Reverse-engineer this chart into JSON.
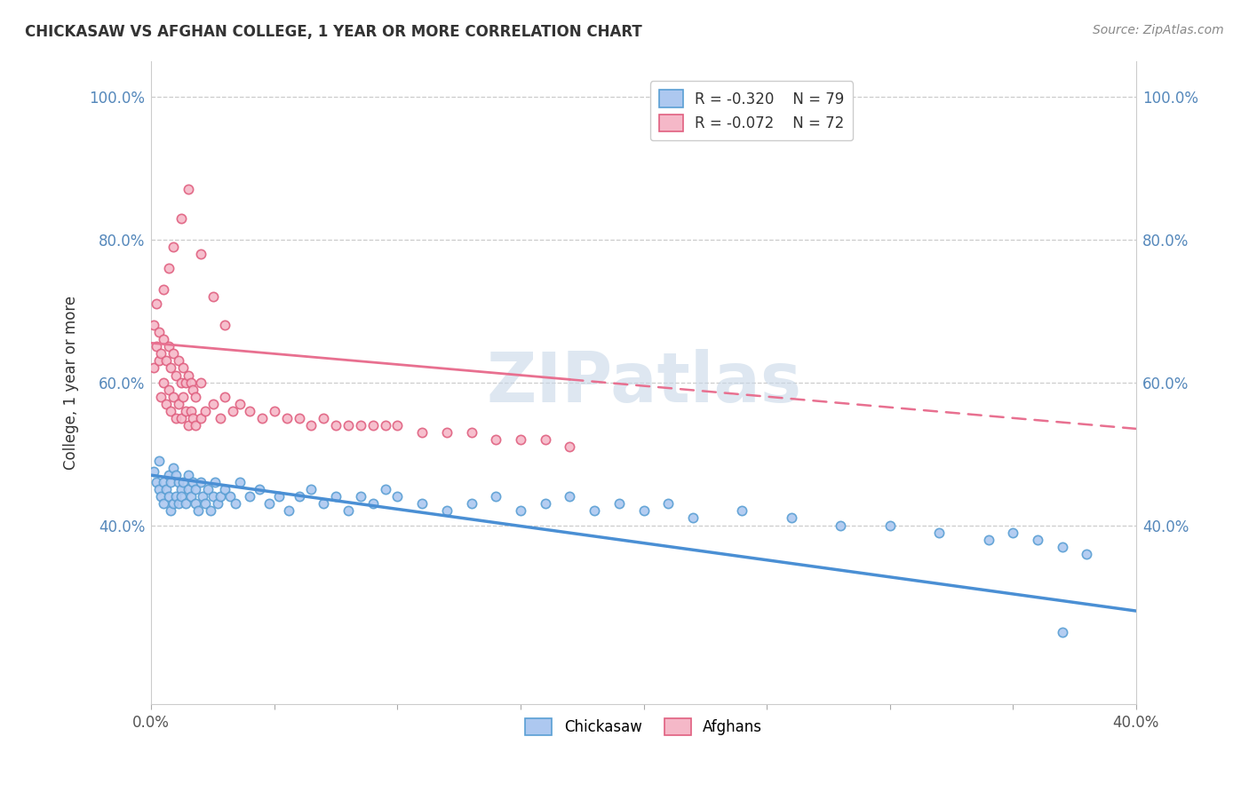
{
  "title": "CHICKASAW VS AFGHAN COLLEGE, 1 YEAR OR MORE CORRELATION CHART",
  "source": "Source: ZipAtlas.com",
  "ylabel": "College, 1 year or more",
  "xlim": [
    0.0,
    0.4
  ],
  "ylim": [
    0.15,
    1.05
  ],
  "yticks": [
    0.4,
    0.6,
    0.8,
    1.0
  ],
  "ytick_labels": [
    "40.0%",
    "60.0%",
    "80.0%",
    "100.0%"
  ],
  "xtick_vals": [
    0.0,
    0.05,
    0.1,
    0.15,
    0.2,
    0.25,
    0.3,
    0.35,
    0.4
  ],
  "xtick_labels": [
    "0.0%",
    "",
    "",
    "",
    "",
    "",
    "",
    "",
    "40.0%"
  ],
  "legend_R_chickasaw": "-0.320",
  "legend_N_chickasaw": "79",
  "legend_R_afghan": "-0.072",
  "legend_N_afghan": "72",
  "chickasaw_fill": "#adc8f0",
  "chickasaw_edge": "#5a9fd4",
  "afghan_fill": "#f5b8c8",
  "afghan_edge": "#e06080",
  "trendline_blue": "#4a8fd4",
  "trendline_pink": "#e87090",
  "watermark": "ZIPatlas",
  "chickasaw_x": [
    0.001,
    0.002,
    0.003,
    0.003,
    0.004,
    0.005,
    0.005,
    0.006,
    0.007,
    0.007,
    0.008,
    0.008,
    0.009,
    0.009,
    0.01,
    0.01,
    0.011,
    0.011,
    0.012,
    0.012,
    0.013,
    0.014,
    0.015,
    0.015,
    0.016,
    0.017,
    0.018,
    0.018,
    0.019,
    0.02,
    0.021,
    0.022,
    0.023,
    0.024,
    0.025,
    0.026,
    0.027,
    0.028,
    0.03,
    0.032,
    0.034,
    0.036,
    0.04,
    0.044,
    0.048,
    0.052,
    0.056,
    0.06,
    0.065,
    0.07,
    0.075,
    0.08,
    0.085,
    0.09,
    0.095,
    0.1,
    0.11,
    0.12,
    0.13,
    0.14,
    0.15,
    0.16,
    0.17,
    0.18,
    0.19,
    0.2,
    0.21,
    0.22,
    0.24,
    0.26,
    0.28,
    0.3,
    0.32,
    0.34,
    0.35,
    0.36,
    0.37,
    0.38,
    0.37
  ],
  "chickasaw_y": [
    0.475,
    0.46,
    0.45,
    0.49,
    0.44,
    0.46,
    0.43,
    0.45,
    0.44,
    0.47,
    0.42,
    0.46,
    0.43,
    0.48,
    0.44,
    0.47,
    0.43,
    0.46,
    0.45,
    0.44,
    0.46,
    0.43,
    0.45,
    0.47,
    0.44,
    0.46,
    0.43,
    0.45,
    0.42,
    0.46,
    0.44,
    0.43,
    0.45,
    0.42,
    0.44,
    0.46,
    0.43,
    0.44,
    0.45,
    0.44,
    0.43,
    0.46,
    0.44,
    0.45,
    0.43,
    0.44,
    0.42,
    0.44,
    0.45,
    0.43,
    0.44,
    0.42,
    0.44,
    0.43,
    0.45,
    0.44,
    0.43,
    0.42,
    0.43,
    0.44,
    0.42,
    0.43,
    0.44,
    0.42,
    0.43,
    0.42,
    0.43,
    0.41,
    0.42,
    0.41,
    0.4,
    0.4,
    0.39,
    0.38,
    0.39,
    0.38,
    0.37,
    0.36,
    0.25
  ],
  "afghan_x": [
    0.001,
    0.001,
    0.002,
    0.002,
    0.003,
    0.003,
    0.004,
    0.004,
    0.005,
    0.005,
    0.006,
    0.006,
    0.007,
    0.007,
    0.008,
    0.008,
    0.009,
    0.009,
    0.01,
    0.01,
    0.011,
    0.011,
    0.012,
    0.012,
    0.013,
    0.013,
    0.014,
    0.014,
    0.015,
    0.015,
    0.016,
    0.016,
    0.017,
    0.017,
    0.018,
    0.018,
    0.02,
    0.02,
    0.022,
    0.025,
    0.028,
    0.03,
    0.033,
    0.036,
    0.04,
    0.045,
    0.05,
    0.055,
    0.06,
    0.065,
    0.07,
    0.075,
    0.08,
    0.085,
    0.09,
    0.095,
    0.1,
    0.11,
    0.12,
    0.13,
    0.14,
    0.15,
    0.16,
    0.17,
    0.005,
    0.007,
    0.009,
    0.012,
    0.015,
    0.02,
    0.025,
    0.03
  ],
  "afghan_y": [
    0.62,
    0.68,
    0.65,
    0.71,
    0.63,
    0.67,
    0.58,
    0.64,
    0.6,
    0.66,
    0.57,
    0.63,
    0.59,
    0.65,
    0.56,
    0.62,
    0.58,
    0.64,
    0.55,
    0.61,
    0.57,
    0.63,
    0.55,
    0.6,
    0.58,
    0.62,
    0.56,
    0.6,
    0.54,
    0.61,
    0.56,
    0.6,
    0.55,
    0.59,
    0.54,
    0.58,
    0.55,
    0.6,
    0.56,
    0.57,
    0.55,
    0.58,
    0.56,
    0.57,
    0.56,
    0.55,
    0.56,
    0.55,
    0.55,
    0.54,
    0.55,
    0.54,
    0.54,
    0.54,
    0.54,
    0.54,
    0.54,
    0.53,
    0.53,
    0.53,
    0.52,
    0.52,
    0.52,
    0.51,
    0.73,
    0.76,
    0.79,
    0.83,
    0.87,
    0.78,
    0.72,
    0.68
  ]
}
